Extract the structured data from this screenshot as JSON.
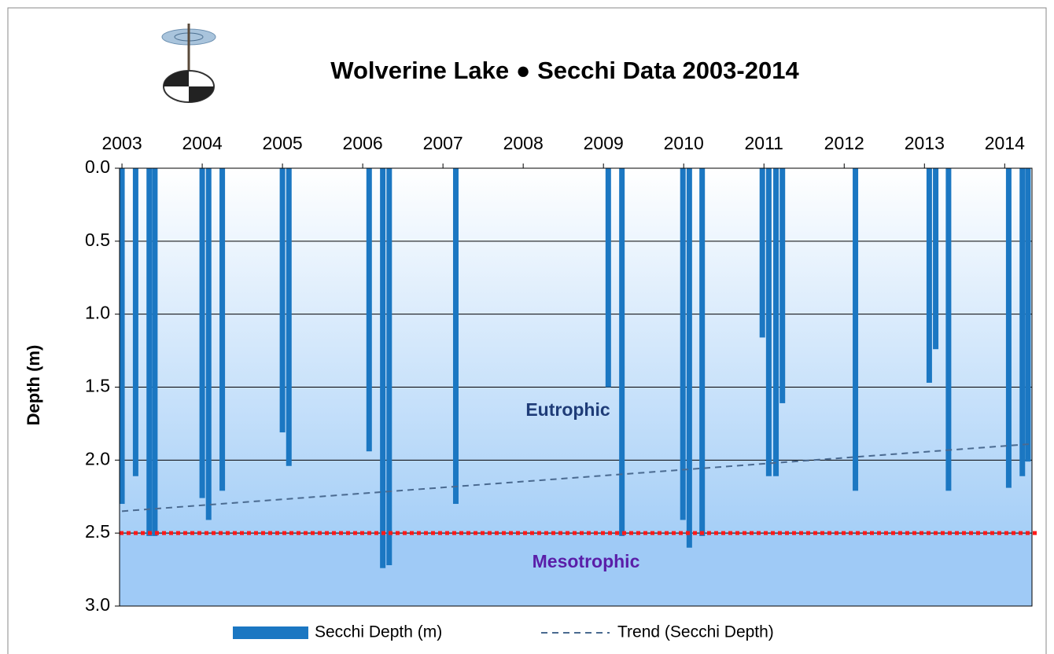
{
  "chart_data": {
    "type": "bar",
    "title": "Wolverine Lake ● Secchi Data 2003-2014",
    "y_label": "Depth (m)",
    "y_inverted": true,
    "xlim": [
      2002.97,
      2014.34
    ],
    "xticks": [
      2003,
      2004,
      2005,
      2006,
      2007,
      2008,
      2009,
      2010,
      2011,
      2012,
      2013,
      2014
    ],
    "ylim": [
      0,
      3
    ],
    "yticks": [
      {
        "value": 0,
        "label": "0.0"
      },
      0.5,
      {
        "value": 1,
        "label": "1.0"
      },
      1.5,
      {
        "value": 2,
        "label": "2.0"
      },
      2.5,
      {
        "value": 3,
        "label": "3.0"
      }
    ],
    "grid": true,
    "legend": "bottom",
    "series": [
      {
        "name": "Secchi Depth (m)",
        "color": "#1b77c2",
        "type": "bar",
        "x": [
          2003.0,
          2003.17,
          2003.34,
          2003.41,
          2004.0,
          2004.08,
          2004.25,
          2005.0,
          2005.08,
          2006.08,
          2006.25,
          2006.33,
          2007.16,
          2009.06,
          2009.23,
          2009.99,
          2010.07,
          2010.23,
          2010.98,
          2011.06,
          2011.15,
          2011.23,
          2012.14,
          2013.06,
          2013.14,
          2013.3,
          2014.05,
          2014.22,
          2014.29
        ],
        "values": [
          2.3,
          2.11,
          2.52,
          2.52,
          2.26,
          2.41,
          2.21,
          1.81,
          2.04,
          1.94,
          2.74,
          2.72,
          2.3,
          1.5,
          2.52,
          2.41,
          2.6,
          2.52,
          1.16,
          2.11,
          2.11,
          1.61,
          2.21,
          1.47,
          1.24,
          2.21,
          2.19,
          2.11,
          2.01
        ]
      },
      {
        "name": "Trend (Secchi Depth)",
        "color": "#4a6a90",
        "type": "line",
        "x": [
          2003.0,
          2014.32
        ],
        "values": [
          2.35,
          1.89
        ]
      }
    ],
    "threshold": {
      "value": 2.5,
      "color": "#ff1a1a"
    },
    "zones": [
      "Eutrophic",
      "Mesotrophic"
    ]
  }
}
